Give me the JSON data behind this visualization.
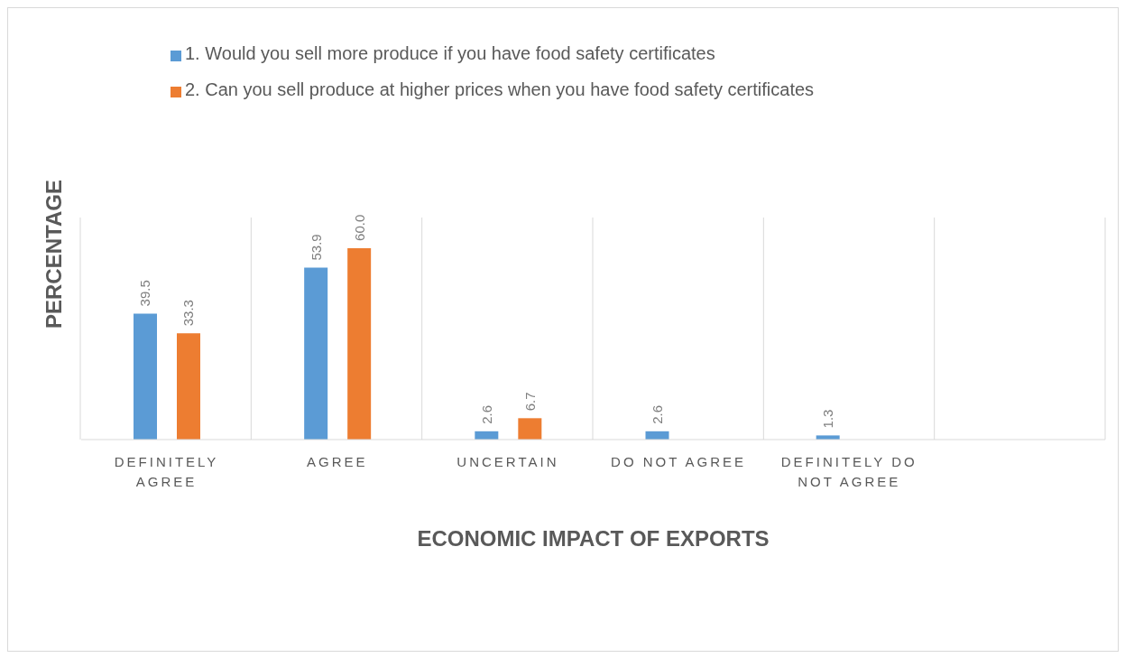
{
  "chart_data": {
    "type": "bar",
    "xlabel": "ECONOMIC IMPACT OF EXPORTS",
    "ylabel": "PERCENTAGE",
    "categories": [
      "DEFINITELY AGREE",
      "AGREE",
      "UNCERTAIN",
      "DO NOT AGREE",
      "DEFINITELY DO NOT AGREE",
      null
    ],
    "series": [
      {
        "name": "1. Would you sell more produce if you have food safety certificates",
        "color": "#5b9bd5",
        "values": [
          39.5,
          53.9,
          2.6,
          2.6,
          1.3,
          null
        ],
        "value_labels": [
          "39.5",
          "53.9",
          "2.6",
          "2.6",
          "1.3",
          null
        ]
      },
      {
        "name": "2. Can you sell produce at higher prices when you  have food safety certificates",
        "color": "#ed7d31",
        "values": [
          33.3,
          60.0,
          6.7,
          null,
          null,
          null
        ],
        "value_labels": [
          "33.3",
          "60.0",
          "6.7",
          null,
          null,
          null
        ]
      }
    ],
    "grid": "x",
    "legend": "top"
  }
}
